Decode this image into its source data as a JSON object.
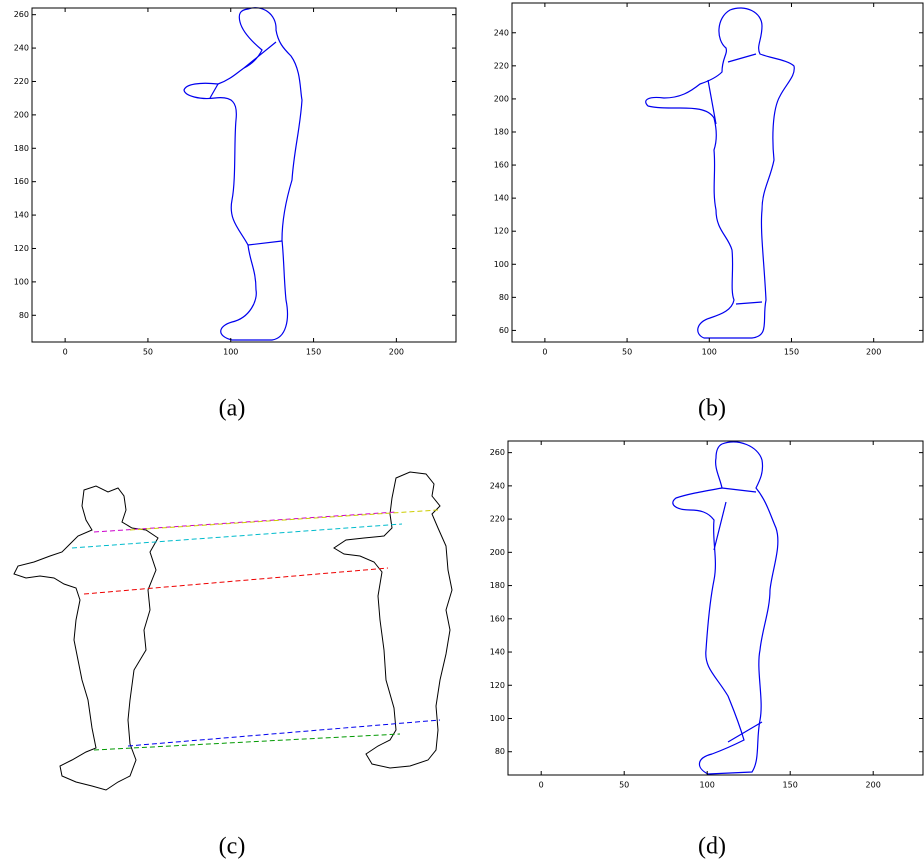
{
  "figure": {
    "panels": [
      {
        "label": "(a)",
        "xlim": [
          -20,
          236
        ],
        "ylim": [
          64,
          264
        ],
        "xticks": [
          0,
          50,
          100,
          150,
          200
        ],
        "yticks": [
          80,
          100,
          120,
          140,
          160,
          180,
          200,
          220,
          240,
          260
        ]
      },
      {
        "label": "(b)",
        "xlim": [
          -20,
          230
        ],
        "ylim": [
          53,
          258
        ],
        "xticks": [
          0,
          50,
          100,
          150,
          200
        ],
        "yticks": [
          60,
          80,
          100,
          120,
          140,
          160,
          180,
          200,
          220,
          240
        ]
      },
      {
        "label": "(c)"
      },
      {
        "label": "(d)",
        "xlim": [
          -20,
          230
        ],
        "ylim": [
          66,
          267
        ],
        "xticks": [
          0,
          50,
          100,
          150,
          200
        ],
        "yticks": [
          80,
          100,
          120,
          140,
          160,
          180,
          200,
          220,
          240,
          260
        ]
      }
    ]
  }
}
